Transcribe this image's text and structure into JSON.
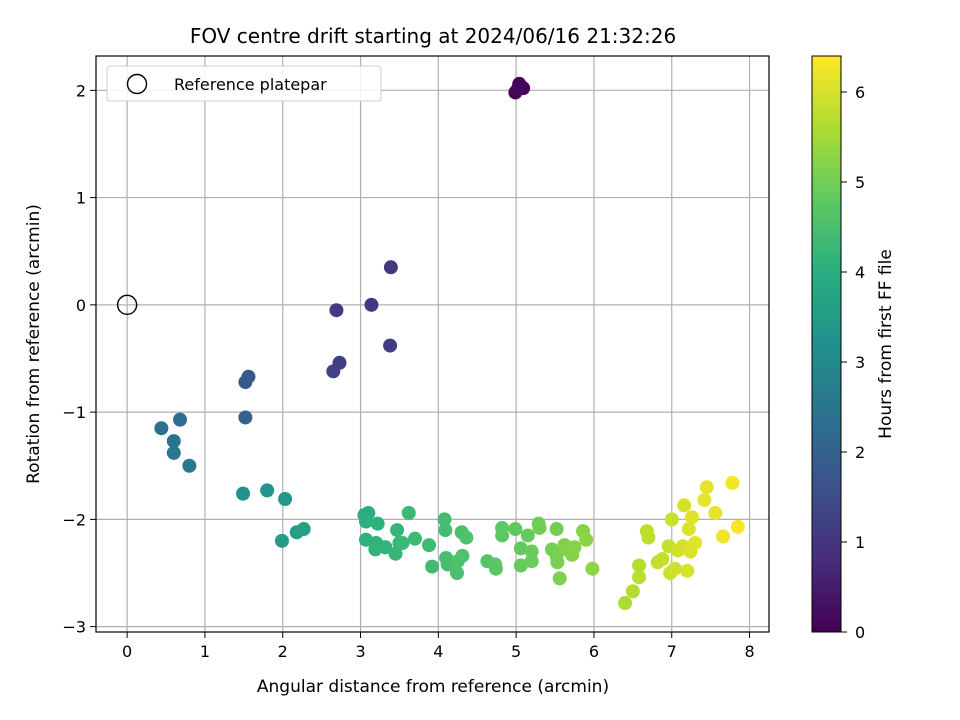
{
  "chart_data": {
    "type": "scatter",
    "title": "FOV centre drift starting at 2024/06/16 21:32:26",
    "xlabel": "Angular distance from reference (arcmin)",
    "ylabel": "Rotation from reference (arcmin)",
    "xlim": [
      -0.4,
      8.25
    ],
    "ylim": [
      -3.05,
      2.32
    ],
    "x_ticks": [
      0,
      1,
      2,
      3,
      4,
      5,
      6,
      7,
      8
    ],
    "y_ticks": [
      -3,
      -2,
      -1,
      0,
      1,
      2
    ],
    "x_tick_labels": [
      "0",
      "1",
      "2",
      "3",
      "4",
      "5",
      "6",
      "7",
      "8"
    ],
    "y_tick_labels": [
      "−3",
      "−2",
      "−1",
      "0",
      "1",
      "2"
    ],
    "grid": true,
    "legend": {
      "location": "upper-left",
      "entries": [
        "Reference platepar"
      ]
    },
    "reference_point": {
      "x": 0,
      "y": 0,
      "marker": "open-circle"
    },
    "colorbar": {
      "label": "Hours from first FF file",
      "colormap": "viridis",
      "range": [
        0,
        6.4
      ],
      "ticks": [
        0,
        1,
        2,
        3,
        4,
        5,
        6
      ],
      "tick_labels": [
        "0",
        "1",
        "2",
        "3",
        "4",
        "5",
        "6"
      ]
    },
    "points": [
      {
        "x": 5.04,
        "y": 2.06,
        "t": 0.02
      },
      {
        "x": 5.09,
        "y": 2.02,
        "t": 0.05
      },
      {
        "x": 4.99,
        "y": 1.98,
        "t": 0.08
      },
      {
        "x": 5.02,
        "y": 2.01,
        "t": 0.1
      },
      {
        "x": 3.39,
        "y": 0.35,
        "t": 1.0
      },
      {
        "x": 3.14,
        "y": 0.0,
        "t": 1.05
      },
      {
        "x": 2.69,
        "y": -0.05,
        "t": 1.1
      },
      {
        "x": 3.38,
        "y": -0.38,
        "t": 1.15
      },
      {
        "x": 2.73,
        "y": -0.54,
        "t": 1.2
      },
      {
        "x": 2.65,
        "y": -0.62,
        "t": 1.25
      },
      {
        "x": 1.56,
        "y": -0.67,
        "t": 1.75
      },
      {
        "x": 1.52,
        "y": -0.72,
        "t": 1.8
      },
      {
        "x": 1.52,
        "y": -1.05,
        "t": 2.0
      },
      {
        "x": 0.68,
        "y": -1.07,
        "t": 2.3
      },
      {
        "x": 0.44,
        "y": -1.15,
        "t": 2.4
      },
      {
        "x": 0.6,
        "y": -1.27,
        "t": 2.45
      },
      {
        "x": 0.6,
        "y": -1.38,
        "t": 2.5
      },
      {
        "x": 0.8,
        "y": -1.5,
        "t": 2.55
      },
      {
        "x": 1.49,
        "y": -1.76,
        "t": 3.2
      },
      {
        "x": 1.8,
        "y": -1.73,
        "t": 3.3
      },
      {
        "x": 2.03,
        "y": -1.81,
        "t": 3.4
      },
      {
        "x": 1.99,
        "y": -2.2,
        "t": 3.5
      },
      {
        "x": 2.18,
        "y": -2.12,
        "t": 3.55
      },
      {
        "x": 2.27,
        "y": -2.09,
        "t": 3.6
      },
      {
        "x": 3.05,
        "y": -1.96,
        "t": 4.0
      },
      {
        "x": 3.1,
        "y": -1.94,
        "t": 4.02
      },
      {
        "x": 3.07,
        "y": -2.02,
        "t": 4.05
      },
      {
        "x": 3.22,
        "y": -2.04,
        "t": 4.08
      },
      {
        "x": 3.07,
        "y": -2.19,
        "t": 4.1
      },
      {
        "x": 3.2,
        "y": -2.22,
        "t": 4.12
      },
      {
        "x": 3.19,
        "y": -2.28,
        "t": 4.15
      },
      {
        "x": 3.32,
        "y": -2.26,
        "t": 4.18
      },
      {
        "x": 3.47,
        "y": -2.1,
        "t": 4.2
      },
      {
        "x": 3.5,
        "y": -2.22,
        "t": 4.22
      },
      {
        "x": 3.45,
        "y": -2.32,
        "t": 4.25
      },
      {
        "x": 3.54,
        "y": -2.22,
        "t": 4.28
      },
      {
        "x": 3.62,
        "y": -1.94,
        "t": 4.3
      },
      {
        "x": 3.7,
        "y": -2.18,
        "t": 4.32
      },
      {
        "x": 3.88,
        "y": -2.24,
        "t": 4.35
      },
      {
        "x": 3.92,
        "y": -2.44,
        "t": 4.38
      },
      {
        "x": 4.08,
        "y": -2.0,
        "t": 4.4
      },
      {
        "x": 4.09,
        "y": -2.1,
        "t": 4.42
      },
      {
        "x": 4.1,
        "y": -2.36,
        "t": 4.45
      },
      {
        "x": 4.12,
        "y": -2.42,
        "t": 4.48
      },
      {
        "x": 4.24,
        "y": -2.5,
        "t": 4.5
      },
      {
        "x": 4.3,
        "y": -2.12,
        "t": 4.52
      },
      {
        "x": 4.36,
        "y": -2.17,
        "t": 4.55
      },
      {
        "x": 4.25,
        "y": -2.39,
        "t": 4.58
      },
      {
        "x": 4.31,
        "y": -2.34,
        "t": 4.6
      },
      {
        "x": 4.63,
        "y": -2.39,
        "t": 4.65
      },
      {
        "x": 4.74,
        "y": -2.46,
        "t": 4.7
      },
      {
        "x": 4.73,
        "y": -2.42,
        "t": 4.72
      },
      {
        "x": 4.82,
        "y": -2.08,
        "t": 4.75
      },
      {
        "x": 4.82,
        "y": -2.15,
        "t": 4.78
      },
      {
        "x": 4.99,
        "y": -2.09,
        "t": 4.8
      },
      {
        "x": 5.06,
        "y": -2.27,
        "t": 4.82
      },
      {
        "x": 5.06,
        "y": -2.43,
        "t": 4.85
      },
      {
        "x": 5.15,
        "y": -2.15,
        "t": 4.88
      },
      {
        "x": 5.2,
        "y": -2.3,
        "t": 4.9
      },
      {
        "x": 5.2,
        "y": -2.39,
        "t": 4.92
      },
      {
        "x": 5.29,
        "y": -2.04,
        "t": 4.95
      },
      {
        "x": 5.3,
        "y": -2.08,
        "t": 4.98
      },
      {
        "x": 5.46,
        "y": -2.28,
        "t": 5.0
      },
      {
        "x": 5.52,
        "y": -2.09,
        "t": 5.02
      },
      {
        "x": 5.52,
        "y": -2.34,
        "t": 5.05
      },
      {
        "x": 5.53,
        "y": -2.4,
        "t": 5.08
      },
      {
        "x": 5.56,
        "y": -2.55,
        "t": 5.1
      },
      {
        "x": 5.62,
        "y": -2.24,
        "t": 5.12
      },
      {
        "x": 5.65,
        "y": -2.28,
        "t": 5.15
      },
      {
        "x": 5.72,
        "y": -2.33,
        "t": 5.18
      },
      {
        "x": 5.75,
        "y": -2.26,
        "t": 5.2
      },
      {
        "x": 5.86,
        "y": -2.11,
        "t": 5.22
      },
      {
        "x": 5.9,
        "y": -2.19,
        "t": 5.25
      },
      {
        "x": 5.98,
        "y": -2.46,
        "t": 5.3
      },
      {
        "x": 6.4,
        "y": -2.78,
        "t": 5.6
      },
      {
        "x": 6.5,
        "y": -2.67,
        "t": 5.65
      },
      {
        "x": 6.58,
        "y": -2.43,
        "t": 5.7
      },
      {
        "x": 6.58,
        "y": -2.54,
        "t": 5.72
      },
      {
        "x": 6.68,
        "y": -2.11,
        "t": 5.75
      },
      {
        "x": 6.7,
        "y": -2.17,
        "t": 5.78
      },
      {
        "x": 6.82,
        "y": -2.4,
        "t": 5.8
      },
      {
        "x": 6.88,
        "y": -2.37,
        "t": 5.82
      },
      {
        "x": 6.96,
        "y": -2.25,
        "t": 5.85
      },
      {
        "x": 7.0,
        "y": -2.0,
        "t": 5.88
      },
      {
        "x": 6.98,
        "y": -2.5,
        "t": 5.9
      },
      {
        "x": 7.04,
        "y": -2.46,
        "t": 5.92
      },
      {
        "x": 7.08,
        "y": -2.29,
        "t": 5.95
      },
      {
        "x": 7.14,
        "y": -2.25,
        "t": 5.98
      },
      {
        "x": 7.16,
        "y": -1.87,
        "t": 6.0
      },
      {
        "x": 7.2,
        "y": -2.48,
        "t": 6.02
      },
      {
        "x": 7.22,
        "y": -2.09,
        "t": 6.05
      },
      {
        "x": 7.24,
        "y": -2.3,
        "t": 6.08
      },
      {
        "x": 7.26,
        "y": -1.98,
        "t": 6.1
      },
      {
        "x": 7.3,
        "y": -2.22,
        "t": 6.12
      },
      {
        "x": 7.42,
        "y": -1.82,
        "t": 6.15
      },
      {
        "x": 7.45,
        "y": -1.7,
        "t": 6.18
      },
      {
        "x": 7.56,
        "y": -1.94,
        "t": 6.2
      },
      {
        "x": 7.66,
        "y": -2.16,
        "t": 6.25
      },
      {
        "x": 7.78,
        "y": -1.66,
        "t": 6.3
      },
      {
        "x": 7.85,
        "y": -2.07,
        "t": 6.35
      }
    ]
  }
}
